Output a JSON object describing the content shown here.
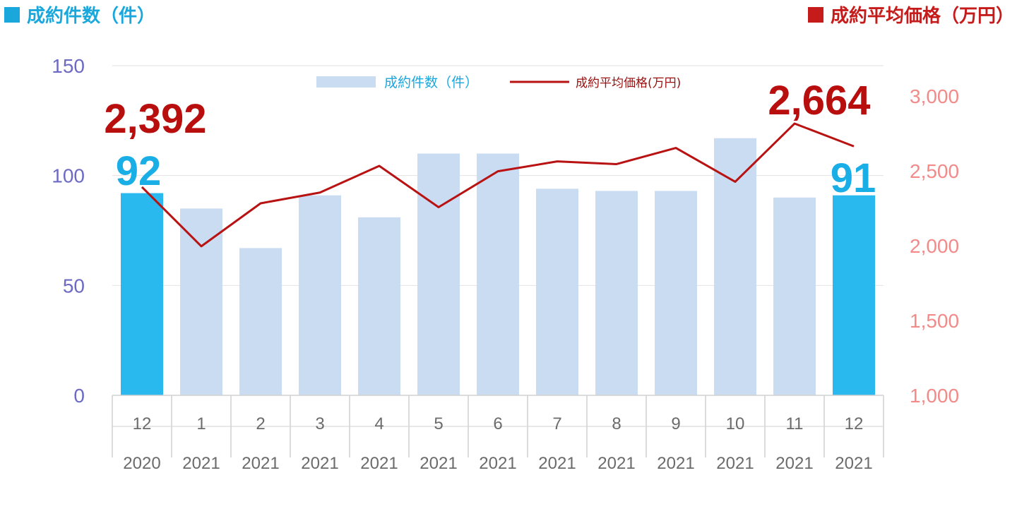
{
  "header": {
    "left_title": "成約件数（件）",
    "right_title": "成約平均価格（万円）",
    "left_color": "#1aa7dc",
    "right_color": "#c51b1b"
  },
  "chart_data": {
    "type": "bar",
    "categories": [
      {
        "month": "12",
        "year": "2020"
      },
      {
        "month": "1",
        "year": "2021"
      },
      {
        "month": "2",
        "year": "2021"
      },
      {
        "month": "3",
        "year": "2021"
      },
      {
        "month": "4",
        "year": "2021"
      },
      {
        "month": "5",
        "year": "2021"
      },
      {
        "month": "6",
        "year": "2021"
      },
      {
        "month": "7",
        "year": "2021"
      },
      {
        "month": "8",
        "year": "2021"
      },
      {
        "month": "9",
        "year": "2021"
      },
      {
        "month": "10",
        "year": "2021"
      },
      {
        "month": "11",
        "year": "2021"
      },
      {
        "month": "12",
        "year": "2021"
      }
    ],
    "series": [
      {
        "name": "成約件数(件)",
        "type": "bar",
        "axis": "left",
        "values": [
          92,
          85,
          67,
          91,
          81,
          110,
          110,
          94,
          93,
          93,
          117,
          90,
          91
        ],
        "highlight_indices": [
          0,
          12
        ],
        "color": "#c9dcf2",
        "highlight_color": "#29b9ee"
      },
      {
        "name": "成約平均価格(万円)",
        "type": "line",
        "axis": "right",
        "values": [
          2392,
          1996,
          2283,
          2355,
          2533,
          2257,
          2497,
          2563,
          2545,
          2653,
          2427,
          2816,
          2664
        ],
        "color": "#b81212"
      }
    ],
    "left_axis": {
      "ticks": [
        0,
        50,
        100,
        150
      ],
      "labels": [
        "0",
        "50",
        "100",
        "150"
      ],
      "ylim": [
        0,
        150
      ],
      "color": "#6d6ac4"
    },
    "right_axis": {
      "ticks": [
        1000,
        1500,
        2000,
        2500,
        3000
      ],
      "labels": [
        "1,000",
        "1,500",
        "2,000",
        "2,500",
        "3,000"
      ],
      "ylim": [
        1000,
        3000
      ],
      "color": "#f28a8a"
    },
    "annotations": [
      {
        "text": "2,392",
        "series": 1,
        "index": 0,
        "color": "#b80e0e"
      },
      {
        "text": "92",
        "series": 0,
        "index": 0,
        "color": "#19aee6"
      },
      {
        "text": "2,664",
        "series": 1,
        "index": 12,
        "color": "#b80e0e"
      },
      {
        "text": "91",
        "series": 0,
        "index": 12,
        "color": "#19aee6"
      }
    ],
    "legend": {
      "placement": "top-center"
    },
    "grid": true
  }
}
